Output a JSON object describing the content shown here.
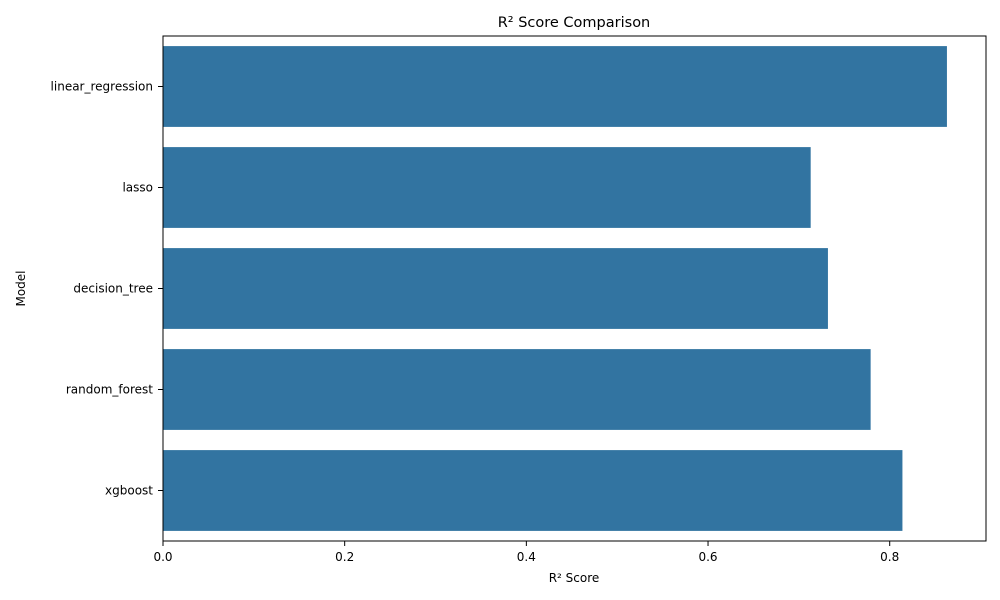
{
  "chart_data": {
    "type": "bar",
    "orientation": "horizontal",
    "title": "R² Score Comparison",
    "xlabel": "R² Score",
    "ylabel": "Model",
    "categories": [
      "linear_regression",
      "lasso",
      "decision_tree",
      "random_forest",
      "xgboost"
    ],
    "values": [
      0.863,
      0.713,
      0.732,
      0.779,
      0.814
    ],
    "xlim": [
      0,
      0.906
    ],
    "xticks": [
      0.0,
      0.2,
      0.4,
      0.6,
      0.8
    ],
    "xtick_labels": [
      "0.0",
      "0.2",
      "0.4",
      "0.6",
      "0.8"
    ],
    "bar_color": "#3274a1",
    "grid": false,
    "legend": "none"
  }
}
